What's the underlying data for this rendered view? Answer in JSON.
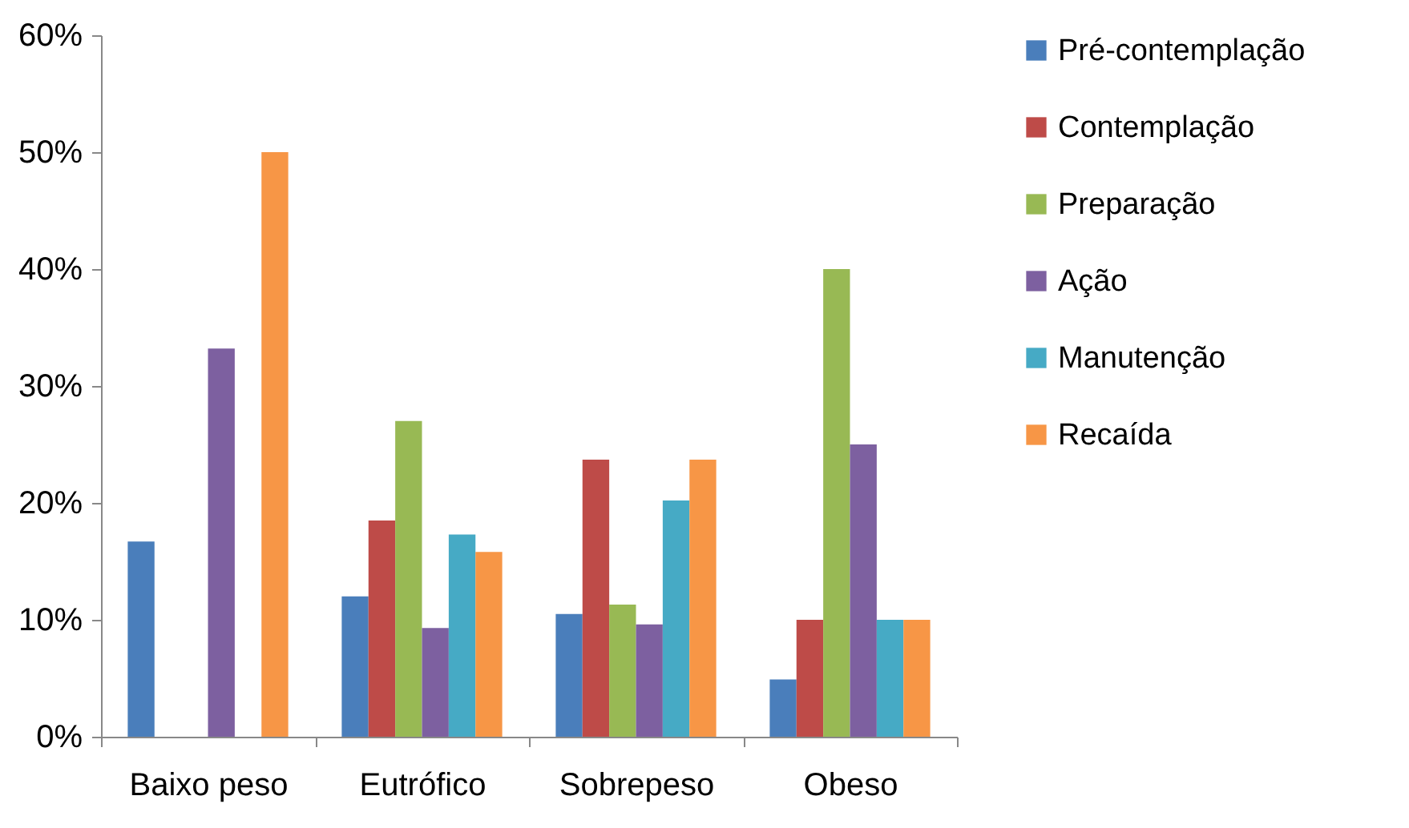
{
  "chart_data": {
    "type": "bar",
    "categories": [
      "Baixo peso",
      "Eutrófico",
      "Sobrepeso",
      "Obeso"
    ],
    "series": [
      {
        "name": "Pré-contemplação",
        "color": "#4a7ebb",
        "values": [
          16.7,
          12,
          10.5,
          4.9
        ]
      },
      {
        "name": "Contemplação",
        "color": "#be4b48",
        "values": [
          0,
          18.5,
          23.7,
          10
        ]
      },
      {
        "name": "Preparação",
        "color": "#98b954",
        "values": [
          0,
          27,
          11.3,
          40
        ]
      },
      {
        "name": "Ação",
        "color": "#7d60a0",
        "values": [
          33.2,
          9.3,
          9.6,
          25
        ]
      },
      {
        "name": "Manutenção",
        "color": "#46aac5",
        "values": [
          0,
          17.3,
          20.2,
          10
        ]
      },
      {
        "name": "Recaída",
        "color": "#f79646",
        "values": [
          50,
          15.8,
          23.7,
          10
        ]
      }
    ],
    "ylim": [
      0,
      60
    ],
    "yticks": [
      {
        "value": 0,
        "label": "0%"
      },
      {
        "value": 10,
        "label": "10%"
      },
      {
        "value": 20,
        "label": "20%"
      },
      {
        "value": 30,
        "label": "30%"
      },
      {
        "value": 40,
        "label": "40%"
      },
      {
        "value": 50,
        "label": "50%"
      },
      {
        "value": 60,
        "label": "60%"
      }
    ],
    "grid": false,
    "legend": "right"
  }
}
